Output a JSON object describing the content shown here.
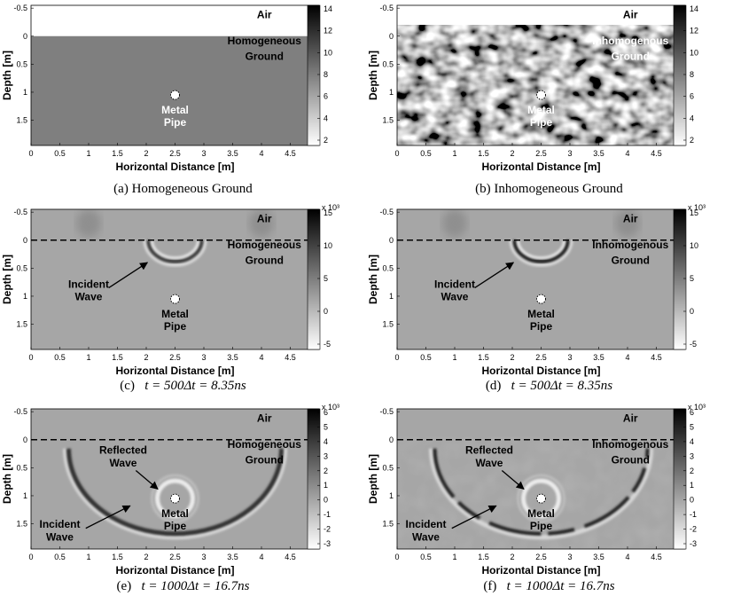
{
  "panels": [
    {
      "id": "a",
      "kind": "model",
      "ground": "homogeneous",
      "caption_prefix": "(a) Homogeneous Ground",
      "caption_math": "",
      "labels": {
        "air": "Air",
        "ground_1": "Homogeneous",
        "ground_2": "Ground",
        "pipe_1": "Metal",
        "pipe_2": "Pipe"
      },
      "colorbar": {
        "ticks": [
          "14",
          "12",
          "10",
          "8",
          "6",
          "4",
          "2"
        ],
        "exponent": ""
      }
    },
    {
      "id": "b",
      "kind": "model",
      "ground": "inhomogeneous",
      "caption_prefix": "(b) Inhomogeneous Ground",
      "caption_math": "",
      "labels": {
        "air": "Air",
        "ground_1": "Inhomogenous",
        "ground_2": "Ground",
        "pipe_1": "Metal",
        "pipe_2": "Pipe"
      },
      "colorbar": {
        "ticks": [
          "14",
          "12",
          "10",
          "8",
          "6",
          "4",
          "2"
        ],
        "exponent": ""
      }
    },
    {
      "id": "c",
      "kind": "wave500",
      "ground": "homogeneous",
      "caption_prefix": "(c)",
      "caption_math": "t = 500Δt = 8.35ns",
      "labels": {
        "air": "Air",
        "ground_1": "Homogeneous",
        "ground_2": "Ground",
        "pipe_1": "Metal",
        "pipe_2": "Pipe",
        "incident_1": "Incident",
        "incident_2": "Wave"
      },
      "colorbar": {
        "ticks": [
          "15",
          "10",
          "5",
          "0",
          "-5"
        ],
        "exponent": "x 10³"
      }
    },
    {
      "id": "d",
      "kind": "wave500",
      "ground": "inhomogeneous",
      "caption_prefix": "(d)",
      "caption_math": "t = 500Δt = 8.35ns",
      "labels": {
        "air": "Air",
        "ground_1": "Inhomogenous",
        "ground_2": "Ground",
        "pipe_1": "Metal",
        "pipe_2": "Pipe",
        "incident_1": "Incident",
        "incident_2": "Wave"
      },
      "colorbar": {
        "ticks": [
          "15",
          "10",
          "5",
          "0",
          "-5"
        ],
        "exponent": "x 10³"
      }
    },
    {
      "id": "e",
      "kind": "wave1000",
      "ground": "homogeneous",
      "caption_prefix": "(e)",
      "caption_math": "t = 1000Δt = 16.7ns",
      "labels": {
        "air": "Air",
        "ground_1": "Homogeneous",
        "ground_2": "Ground",
        "pipe_1": "Metal",
        "pipe_2": "Pipe",
        "incident_1": "Incident",
        "incident_2": "Wave",
        "reflected_1": "Reflected",
        "reflected_2": "Wave"
      },
      "colorbar": {
        "ticks": [
          "6",
          "5",
          "4",
          "3",
          "2",
          "1",
          "0",
          "-1",
          "-2",
          "-3"
        ],
        "exponent": "x 10³"
      }
    },
    {
      "id": "f",
      "kind": "wave1000",
      "ground": "inhomogeneous",
      "caption_prefix": "(f)",
      "caption_math": "t = 1000Δt = 16.7ns",
      "labels": {
        "air": "Air",
        "ground_1": "Inhomogenous",
        "ground_2": "Ground",
        "pipe_1": "Metal",
        "pipe_2": "Pipe",
        "incident_1": "Incident",
        "incident_2": "Wave",
        "reflected_1": "Reflected",
        "reflected_2": "Wave"
      },
      "colorbar": {
        "ticks": [
          "6",
          "5",
          "4",
          "3",
          "2",
          "1",
          "0",
          "-1",
          "-2",
          "-3"
        ],
        "exponent": "x 10³"
      }
    }
  ],
  "axes": {
    "xlabel": "Horizontal Distance [m]",
    "ylabel": "Depth [m]",
    "xticks": [
      "0",
      "0.5",
      "1",
      "1.5",
      "2",
      "2.5",
      "3",
      "3.5",
      "4",
      "4.5"
    ],
    "yticks": [
      "-0.5",
      "0",
      "0.5",
      "1",
      "1.5"
    ],
    "xlim": [
      0,
      5
    ],
    "ylim": [
      -0.55,
      1.95
    ]
  },
  "colors": {
    "ground": "#7f7f7f",
    "background_gray": "#a6a6a6",
    "air": "#ffffff"
  }
}
